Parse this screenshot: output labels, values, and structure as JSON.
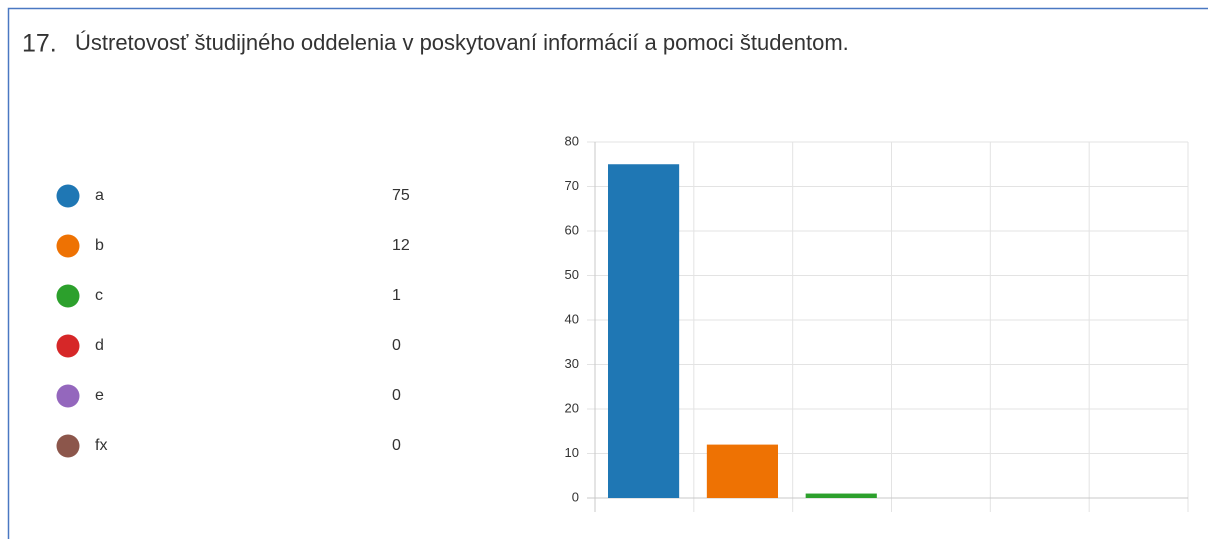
{
  "chart_data": {
    "type": "bar",
    "number": "17.",
    "title": "Ústretovosť študijného oddelenia v poskytovaní informácií a pomoci študentom.",
    "categories": [
      "a",
      "b",
      "c",
      "d",
      "e",
      "fx"
    ],
    "values": [
      75,
      12,
      1,
      0,
      0,
      0
    ],
    "colors": [
      "#1f77b4",
      "#ee7203",
      "#2ca02c",
      "#d62728",
      "#9467bd",
      "#8c564b"
    ],
    "ylim": [
      0,
      80
    ],
    "yticks": [
      0,
      10,
      20,
      30,
      40,
      50,
      60,
      70,
      80
    ],
    "grid": true
  }
}
